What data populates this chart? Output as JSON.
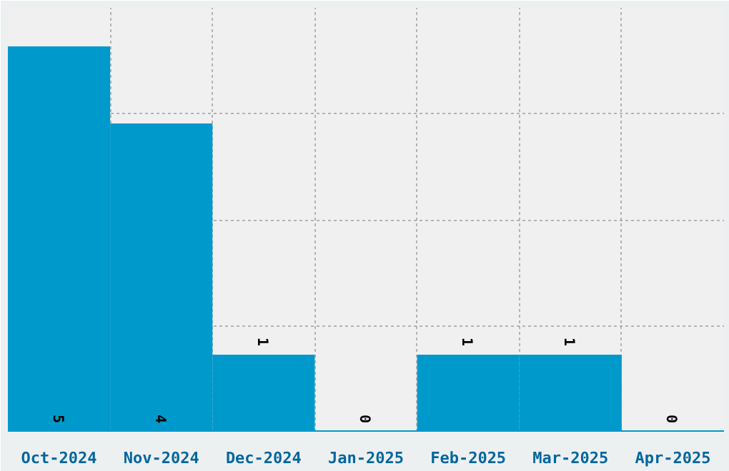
{
  "chart_data": {
    "type": "bar",
    "categories": [
      "Oct-2024",
      "Nov-2024",
      "Dec-2024",
      "Jan-2025",
      "Feb-2025",
      "Mar-2025",
      "Apr-2025"
    ],
    "values": [
      5,
      4,
      1,
      0,
      1,
      1,
      0
    ],
    "color": "#0099cc",
    "ylim": [
      0,
      5.5
    ],
    "yticks": [
      {
        "value": 1.375,
        "label": null
      },
      {
        "value": 2.75,
        "label": null
      },
      {
        "value": 4.125,
        "label": null
      }
    ],
    "tick_labels": "x",
    "grid": true,
    "data_labels": true
  }
}
